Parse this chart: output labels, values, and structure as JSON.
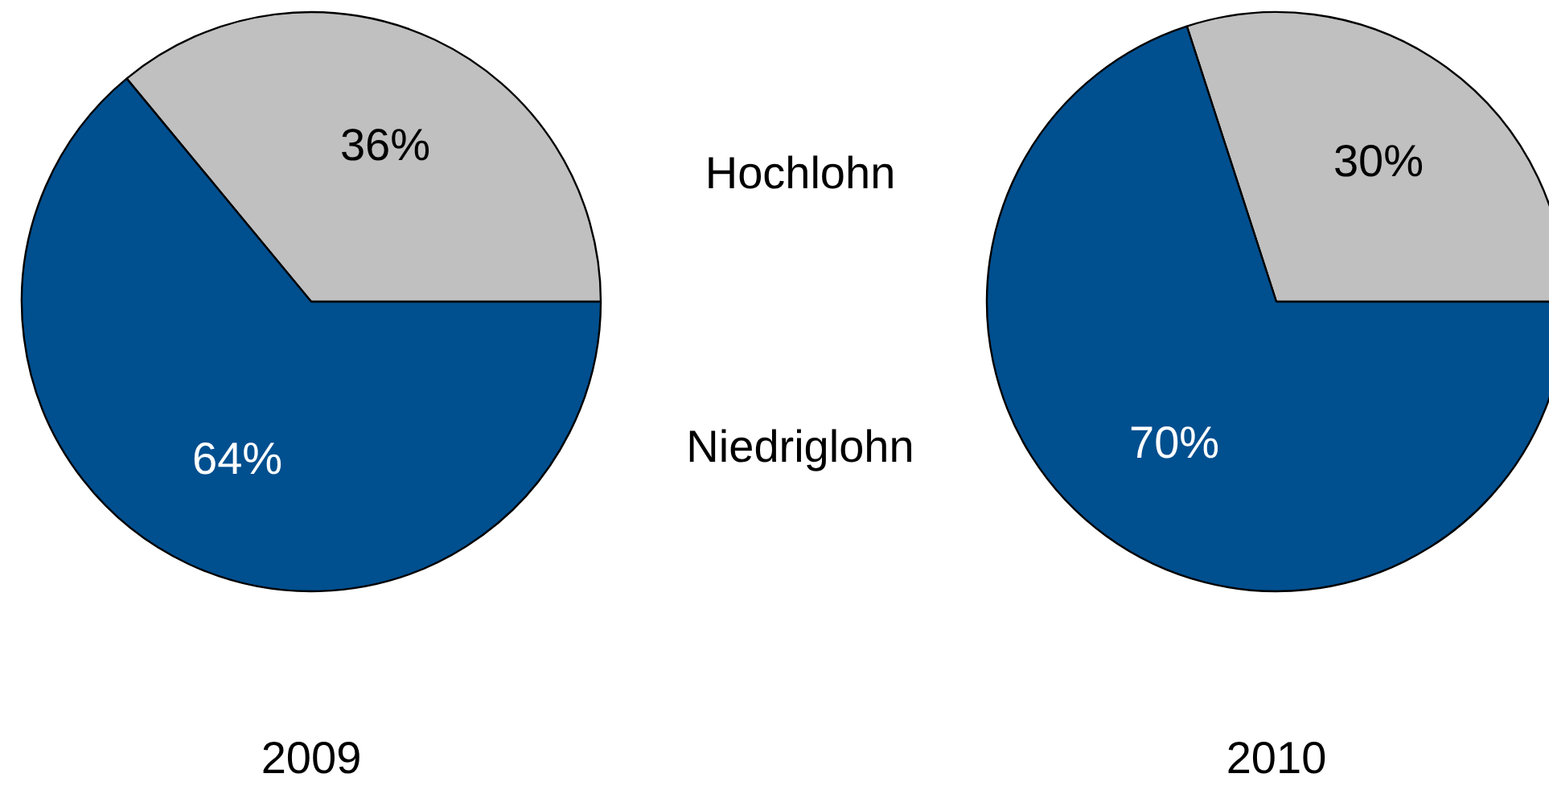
{
  "chart_data": [
    {
      "type": "pie",
      "title": "2009",
      "categories": [
        "Hochlohn",
        "Niedriglohn"
      ],
      "values": [
        36,
        64
      ],
      "colors": [
        "#c0c0c0",
        "#004f8f"
      ],
      "value_labels": [
        "36%",
        "64%"
      ]
    },
    {
      "type": "pie",
      "title": "2010",
      "categories": [
        null,
        null
      ],
      "values": [
        30,
        70
      ],
      "colors": [
        "#c0c0c0",
        "#004f8f"
      ],
      "value_labels": [
        "30%",
        "70%"
      ]
    }
  ]
}
